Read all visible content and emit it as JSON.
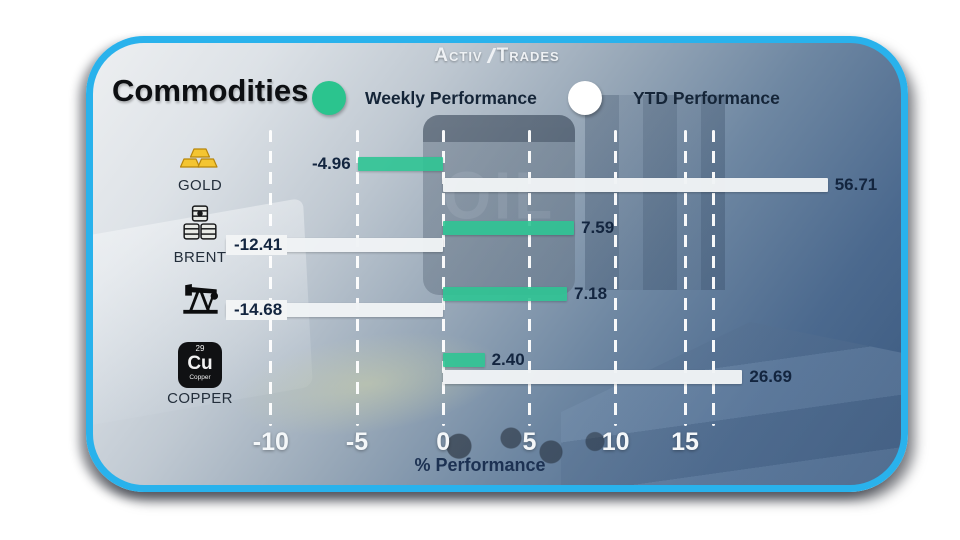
{
  "logo": {
    "part1": "Activ",
    "part2": "Trades"
  },
  "header": {
    "title": "Commodities",
    "legend": [
      {
        "label": "Weekly Performance",
        "color": "#2bc48e"
      },
      {
        "label": "YTD Performance",
        "color": "#ffffff"
      }
    ]
  },
  "background": {
    "oil_text": "OIL"
  },
  "copper_tile": {
    "number": "29",
    "symbol": "Cu",
    "name": "Copper"
  },
  "chart_data": {
    "type": "bar",
    "orientation": "horizontal",
    "title": "Commodities",
    "xlabel": "% Performance",
    "x_ticks": [
      -10,
      -5,
      0,
      5,
      10,
      15
    ],
    "x_gridlines": [
      -10,
      -5,
      0,
      5,
      10,
      15,
      20
    ],
    "xlim": [
      -12.6,
      23.6
    ],
    "grid": "vertical-dashed-white",
    "legend_position": "top",
    "series_names": [
      "Weekly Performance",
      "YTD Performance"
    ],
    "colors": {
      "weekly": "#2bc48e",
      "ytd": "#f0f3f5"
    },
    "rows": [
      {
        "label": "GOLD",
        "icon": "gold-ingots-icon",
        "weekly": -4.96,
        "ytd": 56.71
      },
      {
        "label": "BRENT",
        "icon": "oil-barrels-icon",
        "weekly": 7.59,
        "ytd": -12.41
      },
      {
        "label": "",
        "icon": "oil-pump-jack-icon",
        "weekly": 7.18,
        "ytd": -14.68
      },
      {
        "label": "COPPER",
        "icon": "copper-element-icon",
        "weekly": 2.4,
        "ytd": 26.69
      }
    ]
  }
}
